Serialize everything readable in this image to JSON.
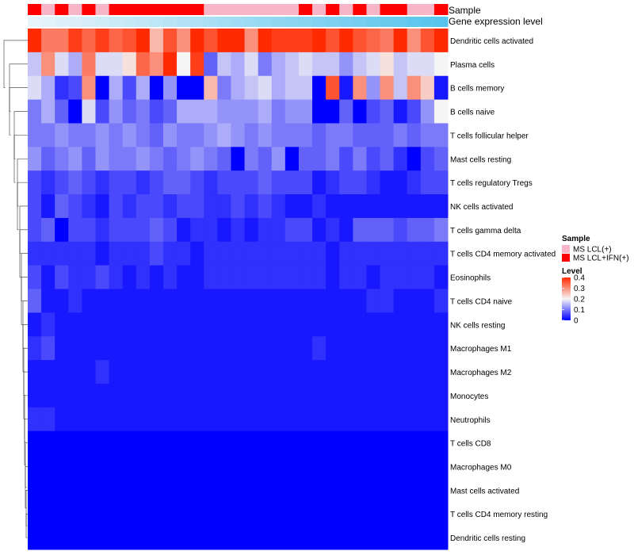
{
  "chart_data": {
    "type": "heatmap",
    "title": "",
    "annotation_labels": {
      "sample": "Sample",
      "gene_expression": "Gene expression level"
    },
    "sample_groups": [
      "MS LCL+IFN(+)",
      "MS LCL(+)",
      "MS LCL+IFN(+)",
      "MS LCL(+)",
      "MS LCL+IFN(+)",
      "MS LCL(+)",
      "MS LCL+IFN(+)",
      "MS LCL+IFN(+)",
      "MS LCL+IFN(+)",
      "MS LCL+IFN(+)",
      "MS LCL+IFN(+)",
      "MS LCL+IFN(+)",
      "MS LCL+IFN(+)",
      "MS LCL(+)",
      "MS LCL(+)",
      "MS LCL(+)",
      "MS LCL(+)",
      "MS LCL(+)",
      "MS LCL(+)",
      "MS LCL(+)",
      "MS LCL+IFN(+)",
      "MS LCL(+)",
      "MS LCL+IFN(+)",
      "MS LCL(+)",
      "MS LCL+IFN(+)",
      "MS LCL(+)",
      "MS LCL+IFN(+)",
      "MS LCL+IFN(+)",
      "MS LCL(+)",
      "MS LCL(+)",
      "MS LCL+IFN(+)"
    ],
    "gene_expression_range": [
      0,
      1
    ],
    "rows": [
      "Dendritic cells activated",
      "Plasma cells",
      "B cells memory",
      "B cells naive",
      "T cells follicular helper",
      "Mast cells resting",
      "T cells regulatory  Tregs",
      "NK cells activated",
      "T cells gamma delta",
      "T cells CD4 memory activated",
      "Eosinophils",
      "T cells CD4 naive",
      "NK cells resting",
      "Macrophages M1",
      "Macrophages M2",
      "Monocytes",
      "Neutrophils",
      "T cells CD8",
      "Macrophages M0",
      "Mast cells activated",
      "T cells CD4 memory resting",
      "Dendritic cells resting"
    ],
    "values": [
      [
        0.4,
        0.32,
        0.32,
        0.38,
        0.34,
        0.38,
        0.34,
        0.36,
        0.4,
        0.26,
        0.36,
        0.3,
        0.4,
        0.36,
        0.4,
        0.4,
        0.3,
        0.4,
        0.38,
        0.38,
        0.38,
        0.4,
        0.36,
        0.4,
        0.36,
        0.34,
        0.32,
        0.4,
        0.3,
        0.36,
        0.4
      ],
      [
        0.16,
        0.3,
        0.18,
        0.14,
        0.32,
        0.18,
        0.18,
        0.22,
        0.34,
        0.3,
        0.4,
        0.2,
        0.38,
        0.08,
        0.16,
        0.14,
        0.18,
        0.1,
        0.14,
        0.16,
        0.18,
        0.16,
        0.16,
        0.12,
        0.16,
        0.18,
        0.22,
        0.16,
        0.18,
        0.18,
        0.2
      ],
      [
        0.18,
        0.14,
        0.04,
        0.06,
        0.3,
        0.0,
        0.14,
        0.06,
        0.14,
        0.0,
        0.12,
        0.0,
        0.0,
        0.26,
        0.1,
        0.14,
        0.16,
        0.18,
        0.14,
        0.16,
        0.16,
        0.0,
        0.36,
        0.02,
        0.3,
        0.12,
        0.3,
        0.16,
        0.3,
        0.24,
        0.02
      ],
      [
        0.1,
        0.14,
        0.08,
        0.0,
        0.18,
        0.06,
        0.12,
        0.08,
        0.1,
        0.06,
        0.08,
        0.14,
        0.14,
        0.14,
        0.12,
        0.12,
        0.12,
        0.14,
        0.1,
        0.12,
        0.12,
        0.0,
        0.0,
        0.08,
        0.0,
        0.06,
        0.08,
        0.02,
        0.06,
        0.12,
        0.2
      ],
      [
        0.1,
        0.1,
        0.12,
        0.1,
        0.1,
        0.12,
        0.1,
        0.12,
        0.1,
        0.08,
        0.12,
        0.1,
        0.1,
        0.12,
        0.14,
        0.12,
        0.1,
        0.12,
        0.1,
        0.1,
        0.1,
        0.08,
        0.1,
        0.1,
        0.08,
        0.08,
        0.08,
        0.1,
        0.08,
        0.1,
        0.1
      ],
      [
        0.12,
        0.08,
        0.1,
        0.12,
        0.08,
        0.12,
        0.1,
        0.1,
        0.12,
        0.1,
        0.08,
        0.1,
        0.12,
        0.1,
        0.08,
        0.0,
        0.1,
        0.08,
        0.12,
        0.0,
        0.08,
        0.08,
        0.1,
        0.06,
        0.1,
        0.06,
        0.08,
        0.04,
        0.0,
        0.06,
        0.08
      ],
      [
        0.06,
        0.04,
        0.06,
        0.08,
        0.06,
        0.04,
        0.06,
        0.06,
        0.04,
        0.06,
        0.08,
        0.08,
        0.06,
        0.04,
        0.06,
        0.06,
        0.06,
        0.08,
        0.06,
        0.06,
        0.06,
        0.02,
        0.04,
        0.06,
        0.06,
        0.04,
        0.02,
        0.02,
        0.04,
        0.06,
        0.06
      ],
      [
        0.06,
        0.02,
        0.08,
        0.06,
        0.04,
        0.02,
        0.06,
        0.04,
        0.06,
        0.06,
        0.04,
        0.06,
        0.06,
        0.04,
        0.04,
        0.06,
        0.04,
        0.06,
        0.04,
        0.02,
        0.02,
        0.04,
        0.02,
        0.02,
        0.02,
        0.02,
        0.02,
        0.02,
        0.02,
        0.02,
        0.02
      ],
      [
        0.06,
        0.08,
        0.0,
        0.06,
        0.06,
        0.04,
        0.06,
        0.06,
        0.06,
        0.08,
        0.06,
        0.02,
        0.04,
        0.04,
        0.02,
        0.04,
        0.02,
        0.04,
        0.04,
        0.06,
        0.06,
        0.02,
        0.04,
        0.02,
        0.08,
        0.08,
        0.08,
        0.06,
        0.08,
        0.08,
        0.1
      ],
      [
        0.04,
        0.04,
        0.04,
        0.04,
        0.04,
        0.02,
        0.04,
        0.04,
        0.04,
        0.06,
        0.04,
        0.04,
        0.02,
        0.04,
        0.04,
        0.04,
        0.04,
        0.04,
        0.04,
        0.04,
        0.04,
        0.04,
        0.02,
        0.04,
        0.04,
        0.04,
        0.04,
        0.04,
        0.04,
        0.04,
        0.04
      ],
      [
        0.06,
        0.02,
        0.06,
        0.04,
        0.04,
        0.06,
        0.04,
        0.02,
        0.04,
        0.02,
        0.04,
        0.02,
        0.02,
        0.04,
        0.04,
        0.04,
        0.04,
        0.04,
        0.04,
        0.04,
        0.04,
        0.04,
        0.02,
        0.04,
        0.04,
        0.02,
        0.04,
        0.04,
        0.04,
        0.04,
        0.02
      ],
      [
        0.08,
        0.02,
        0.02,
        0.04,
        0.02,
        0.02,
        0.02,
        0.02,
        0.02,
        0.02,
        0.02,
        0.02,
        0.02,
        0.02,
        0.02,
        0.02,
        0.02,
        0.02,
        0.02,
        0.02,
        0.02,
        0.02,
        0.02,
        0.02,
        0.02,
        0.04,
        0.04,
        0.02,
        0.02,
        0.02,
        0.04
      ],
      [
        0.02,
        0.04,
        0.02,
        0.02,
        0.02,
        0.02,
        0.02,
        0.02,
        0.02,
        0.02,
        0.02,
        0.02,
        0.02,
        0.02,
        0.02,
        0.02,
        0.02,
        0.02,
        0.02,
        0.02,
        0.02,
        0.02,
        0.02,
        0.02,
        0.02,
        0.02,
        0.02,
        0.02,
        0.02,
        0.02,
        0.02
      ],
      [
        0.04,
        0.06,
        0.02,
        0.02,
        0.02,
        0.02,
        0.02,
        0.02,
        0.02,
        0.02,
        0.02,
        0.02,
        0.02,
        0.02,
        0.02,
        0.02,
        0.02,
        0.02,
        0.02,
        0.02,
        0.02,
        0.04,
        0.02,
        0.02,
        0.02,
        0.02,
        0.02,
        0.02,
        0.02,
        0.02,
        0.02
      ],
      [
        0.02,
        0.02,
        0.02,
        0.02,
        0.02,
        0.04,
        0.02,
        0.02,
        0.02,
        0.02,
        0.02,
        0.02,
        0.02,
        0.02,
        0.02,
        0.02,
        0.02,
        0.02,
        0.02,
        0.02,
        0.02,
        0.02,
        0.02,
        0.02,
        0.02,
        0.02,
        0.02,
        0.02,
        0.02,
        0.02,
        0.02
      ],
      [
        0.02,
        0.02,
        0.02,
        0.02,
        0.02,
        0.02,
        0.02,
        0.02,
        0.02,
        0.02,
        0.02,
        0.02,
        0.02,
        0.02,
        0.02,
        0.02,
        0.02,
        0.02,
        0.02,
        0.02,
        0.02,
        0.02,
        0.02,
        0.02,
        0.02,
        0.02,
        0.02,
        0.02,
        0.02,
        0.02,
        0.02
      ],
      [
        0.04,
        0.04,
        0.02,
        0.02,
        0.02,
        0.02,
        0.02,
        0.02,
        0.02,
        0.02,
        0.02,
        0.02,
        0.02,
        0.02,
        0.02,
        0.02,
        0.02,
        0.02,
        0.02,
        0.02,
        0.02,
        0.02,
        0.02,
        0.02,
        0.02,
        0.02,
        0.02,
        0.02,
        0.02,
        0.02,
        0.02
      ],
      [
        0.0,
        0.0,
        0.0,
        0.0,
        0.0,
        0.0,
        0.0,
        0.0,
        0.0,
        0.0,
        0.0,
        0.0,
        0.0,
        0.0,
        0.0,
        0.0,
        0.0,
        0.0,
        0.0,
        0.0,
        0.0,
        0.0,
        0.0,
        0.0,
        0.0,
        0.0,
        0.0,
        0.0,
        0.0,
        0.0,
        0.0
      ],
      [
        0.0,
        0.0,
        0.0,
        0.0,
        0.0,
        0.0,
        0.0,
        0.0,
        0.0,
        0.0,
        0.0,
        0.0,
        0.0,
        0.0,
        0.0,
        0.0,
        0.0,
        0.0,
        0.0,
        0.0,
        0.0,
        0.0,
        0.0,
        0.0,
        0.0,
        0.0,
        0.0,
        0.0,
        0.0,
        0.0,
        0.0
      ],
      [
        0.0,
        0.0,
        0.0,
        0.0,
        0.0,
        0.0,
        0.0,
        0.0,
        0.0,
        0.0,
        0.0,
        0.0,
        0.0,
        0.0,
        0.0,
        0.0,
        0.0,
        0.0,
        0.0,
        0.0,
        0.0,
        0.0,
        0.0,
        0.0,
        0.0,
        0.0,
        0.0,
        0.0,
        0.0,
        0.0,
        0.0
      ],
      [
        0.0,
        0.0,
        0.0,
        0.0,
        0.0,
        0.0,
        0.0,
        0.0,
        0.0,
        0.0,
        0.0,
        0.0,
        0.0,
        0.0,
        0.0,
        0.0,
        0.0,
        0.0,
        0.0,
        0.0,
        0.0,
        0.0,
        0.0,
        0.0,
        0.0,
        0.0,
        0.0,
        0.0,
        0.0,
        0.0,
        0.0
      ],
      [
        0.0,
        0.0,
        0.0,
        0.0,
        0.0,
        0.0,
        0.0,
        0.0,
        0.0,
        0.0,
        0.0,
        0.0,
        0.0,
        0.0,
        0.0,
        0.0,
        0.0,
        0.0,
        0.0,
        0.0,
        0.0,
        0.0,
        0.0,
        0.0,
        0.0,
        0.0,
        0.0,
        0.0,
        0.0,
        0.0,
        0.0
      ]
    ],
    "color_scale": {
      "low": "#0000ff",
      "mid": "#f5f5f5",
      "high": "#ff2a00",
      "min": 0,
      "mid_value": 0.2,
      "max": 0.4
    },
    "legend": {
      "sample_title": "Sample",
      "sample_entries": [
        {
          "label": "MS LCL(+)",
          "color": "#f7b6c8"
        },
        {
          "label": "MS LCL+IFN(+)",
          "color": "#ff0000"
        }
      ],
      "level_title": "Level",
      "level_ticks": [
        "0.4",
        "0.3",
        "0.2",
        "0.1",
        "0"
      ],
      "placement": "right"
    }
  }
}
